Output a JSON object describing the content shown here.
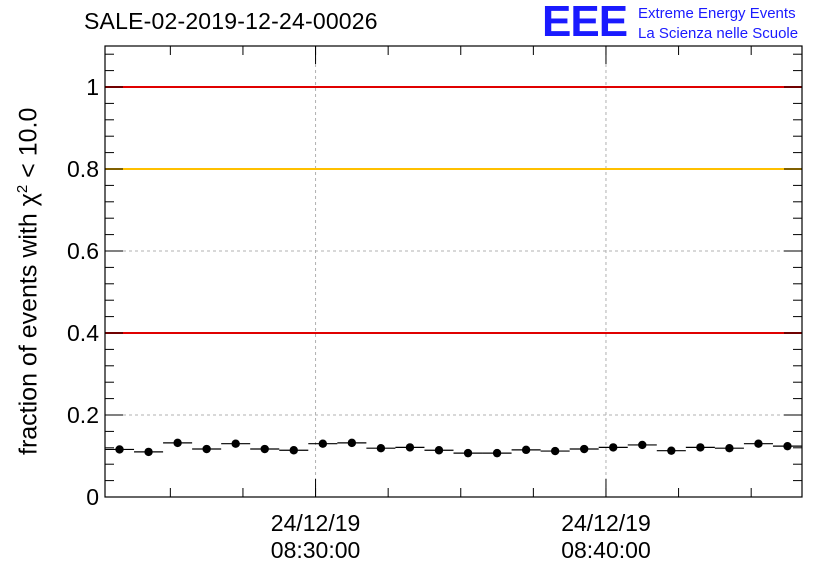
{
  "title": "SALE-02-2019-12-24-00026",
  "logo": {
    "mark": "EEE",
    "line1": "Extreme Energy Events",
    "line2": "La Scienza nelle Scuole",
    "color": "#1a1aff"
  },
  "chart_data": {
    "type": "scatter",
    "title": "SALE-02-2019-12-24-00026",
    "ylabel_main": "fraction of events with χ",
    "ylabel_sup": "2",
    "ylabel_tail": " < 10.0",
    "ylim": [
      0,
      1.1
    ],
    "yticks": [
      {
        "value": 0,
        "label": "0"
      },
      {
        "value": 0.2,
        "label": "0.2"
      },
      {
        "value": 0.4,
        "label": "0.4"
      },
      {
        "value": 0.6,
        "label": "0.6"
      },
      {
        "value": 0.8,
        "label": "0.8"
      },
      {
        "value": 1,
        "label": "1"
      }
    ],
    "xlim_minutes": [
      0,
      24
    ],
    "xticks": [
      {
        "minute": 7.25,
        "date": "24/12/19",
        "time": "08:30:00"
      },
      {
        "minute": 17.25,
        "date": "24/12/19",
        "time": "08:40:00"
      }
    ],
    "reference_lines": [
      {
        "y": 1.0,
        "color": "#e00000"
      },
      {
        "y": 0.8,
        "color": "#ffc000"
      },
      {
        "y": 0.4,
        "color": "#e00000"
      }
    ],
    "grid": true,
    "series": [
      {
        "bin_width_minutes": 1,
        "x_minutes": [
          0.5,
          1.5,
          2.5,
          3.5,
          4.5,
          5.5,
          6.5,
          7.5,
          8.5,
          9.5,
          10.5,
          11.5,
          12.5,
          13.5,
          14.5,
          15.5,
          16.5,
          17.5,
          18.5,
          19.5,
          20.5,
          21.5,
          22.5,
          23.5
        ],
        "values": [
          0.116,
          0.11,
          0.132,
          0.117,
          0.13,
          0.117,
          0.114,
          0.13,
          0.132,
          0.119,
          0.121,
          0.114,
          0.107,
          0.107,
          0.115,
          0.112,
          0.117,
          0.121,
          0.127,
          0.113,
          0.121,
          0.119,
          0.13,
          0.124
        ],
        "color": "#000000"
      }
    ]
  }
}
